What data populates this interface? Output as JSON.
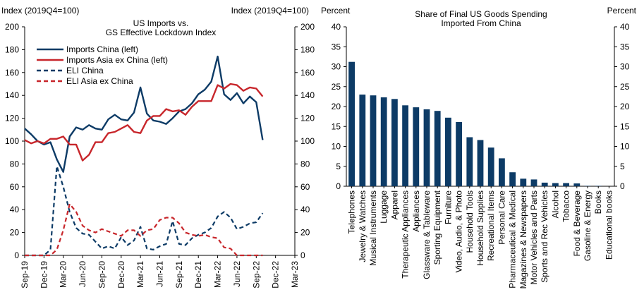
{
  "colors": {
    "navy": "#0d3b66",
    "red": "#c8262b",
    "bar": "#0d3b66",
    "axis": "#000000"
  },
  "chart_data": [
    {
      "type": "line",
      "title_lines": [
        "US Imports vs.",
        "GS Effective Lockdown Index"
      ],
      "ylabel_left": "Index (2019Q4=100)",
      "ylabel_right": "Index (2019Q4=100)",
      "ylim": [
        0,
        200
      ],
      "yticks": [
        0,
        20,
        40,
        60,
        80,
        100,
        120,
        140,
        160,
        180,
        200
      ],
      "xlim": [
        0,
        42
      ],
      "xticks": [
        {
          "label": "Sep-19",
          "x": 0
        },
        {
          "label": "Dec-19",
          "x": 3
        },
        {
          "label": "Mar-20",
          "x": 6
        },
        {
          "label": "Jun-20",
          "x": 9
        },
        {
          "label": "Sep-20",
          "x": 12
        },
        {
          "label": "Dec-20",
          "x": 15
        },
        {
          "label": "Mar-21",
          "x": 18
        },
        {
          "label": "Jun-21",
          "x": 21
        },
        {
          "label": "Sep-21",
          "x": 24
        },
        {
          "label": "Dec-21",
          "x": 27
        },
        {
          "label": "Mar-22",
          "x": 30
        },
        {
          "label": "Jun-22",
          "x": 33
        },
        {
          "label": "Sep-22",
          "x": 36
        },
        {
          "label": "Dec-22",
          "x": 39
        },
        {
          "label": "Mar-23",
          "x": 42
        }
      ],
      "series": [
        {
          "name": "Imports China (left)",
          "color": "#0d3b66",
          "dash": false,
          "x": [
            0,
            1,
            2,
            3,
            4,
            5,
            6,
            7,
            8,
            9,
            10,
            11,
            12,
            13,
            14,
            15,
            16,
            17,
            18,
            19,
            20,
            21,
            22,
            23,
            24,
            25,
            26,
            27,
            28,
            29,
            30,
            31,
            32,
            33,
            34,
            35,
            36,
            37
          ],
          "y": [
            111,
            106,
            100,
            97,
            99,
            84,
            73,
            104,
            112,
            110,
            114,
            111,
            110,
            119,
            123,
            119,
            118,
            125,
            147,
            124,
            118,
            117,
            115,
            120,
            126,
            128,
            133,
            141,
            145,
            152,
            174,
            141,
            136,
            142,
            133,
            139,
            134,
            101
          ]
        },
        {
          "name": "Imports Asia ex China (left)",
          "color": "#c8262b",
          "dash": false,
          "x": [
            0,
            1,
            2,
            3,
            4,
            5,
            6,
            7,
            8,
            9,
            10,
            11,
            12,
            13,
            14,
            15,
            16,
            17,
            18,
            19,
            20,
            21,
            22,
            23,
            24,
            25,
            26,
            27,
            28,
            29,
            30,
            31,
            32,
            33,
            34,
            35,
            36,
            37
          ],
          "y": [
            101,
            98,
            100,
            98,
            102,
            102,
            104,
            97,
            97,
            83,
            88,
            99,
            99,
            107,
            108,
            111,
            114,
            108,
            107,
            118,
            122,
            122,
            128,
            126,
            127,
            123,
            130,
            135,
            135,
            135,
            149,
            146,
            150,
            149,
            144,
            147,
            146,
            139
          ]
        },
        {
          "name": "ELI China",
          "color": "#0d3b66",
          "dash": true,
          "x": [
            0,
            1,
            2,
            3,
            4,
            5,
            6,
            7,
            8,
            9,
            10,
            11,
            12,
            13,
            14,
            15,
            16,
            17,
            18,
            19,
            20,
            21,
            22,
            23,
            24,
            25,
            26,
            27,
            28,
            29,
            30,
            31,
            32,
            33,
            34,
            35,
            36,
            37
          ],
          "y": [
            0,
            0,
            0,
            0,
            5,
            78,
            60,
            38,
            24,
            19,
            18,
            12,
            6,
            8,
            6,
            16,
            9,
            13,
            25,
            6,
            5,
            8,
            10,
            30,
            10,
            9,
            15,
            18,
            20,
            24,
            34,
            38,
            33,
            23,
            25,
            28,
            29,
            37
          ]
        },
        {
          "name": "ELI Asia ex China",
          "color": "#c8262b",
          "dash": true,
          "x": [
            0,
            1,
            2,
            3,
            4,
            5,
            6,
            7,
            8,
            9,
            10,
            11,
            12,
            13,
            14,
            15,
            16,
            17,
            18,
            19,
            20,
            21,
            22,
            23,
            24,
            25,
            26,
            27,
            28,
            29,
            30,
            31,
            32,
            33,
            34,
            35,
            36,
            37
          ],
          "y": [
            0,
            0,
            0,
            0,
            0,
            5,
            22,
            45,
            38,
            26,
            22,
            20,
            23,
            21,
            19,
            17,
            22,
            22,
            17,
            22,
            23,
            31,
            33,
            33,
            28,
            20,
            18,
            17,
            18,
            16,
            15,
            7,
            6,
            0,
            0,
            0,
            0,
            0
          ]
        }
      ]
    },
    {
      "type": "bar",
      "title_lines": [
        "Share of Final US Goods Spending",
        "Imported From China"
      ],
      "ylabel_left": "Percent",
      "ylabel_right": "Percent",
      "ylim": [
        0,
        40
      ],
      "yticks": [
        0,
        5,
        10,
        15,
        20,
        25,
        30,
        35,
        40
      ],
      "categories": [
        "Telephones",
        "Jewelry & Watches",
        "Musical Instruments",
        "Luggage",
        "Apparel",
        "Therapeutic Appliances",
        "Appliances",
        "Glassware & Tableware",
        "Sporting Equipment",
        "Furniture",
        "Video, Audio, & Photo",
        "Household Tools",
        "Household Supplies",
        "Recreational Items",
        "Personal Care",
        "Pharmaceutical & Medical",
        "Magazines & Newspapers",
        "Motor Vehicles and Parts",
        "Sports and Rec Vehicles",
        "Alcohol",
        "Tobacco",
        "Food & Beverage",
        "Gasoline & Energy",
        "Books",
        "Educational books"
      ],
      "values": [
        31.2,
        23.0,
        22.8,
        22.3,
        21.9,
        20.3,
        19.8,
        19.3,
        18.9,
        17.2,
        16.1,
        12.3,
        11.6,
        9.7,
        7.0,
        3.5,
        1.9,
        1.7,
        0.9,
        0.8,
        0.8,
        0.7,
        0.1,
        0.1,
        0.0
      ]
    }
  ]
}
